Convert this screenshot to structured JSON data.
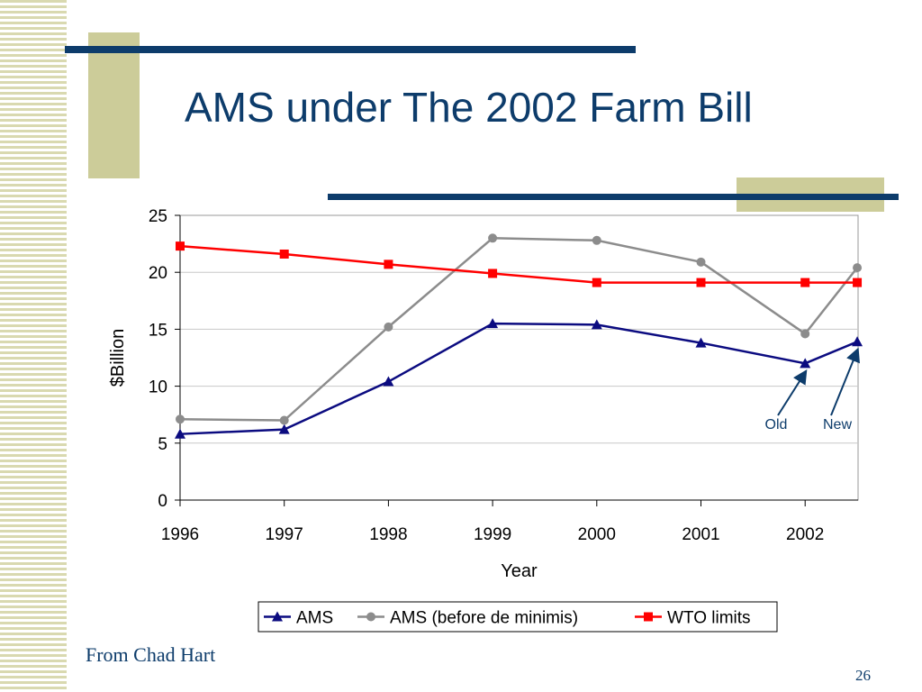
{
  "slide": {
    "title": "AMS under The 2002 Farm Bill",
    "credit": "From Chad Hart",
    "page_number": "26"
  },
  "colors": {
    "ams": "#0b0b80",
    "ams_before": "#8c8c8c",
    "wto": "#ff0000",
    "title": "#0d3c6b",
    "accent_bar": "#0d3c6b",
    "accent_block": "#cccc99"
  },
  "chart_data": {
    "type": "line",
    "title": "",
    "xlabel": "Year",
    "ylabel": "$Billion",
    "x_ticks": [
      "1996",
      "1997",
      "1998",
      "1999",
      "2000",
      "2001",
      "2002"
    ],
    "y_ticks": [
      "0",
      "5",
      "10",
      "15",
      "20",
      "25"
    ],
    "ylim": [
      0,
      25
    ],
    "grid": true,
    "legend_position": "bottom",
    "series": [
      {
        "name": "AMS",
        "marker": "triangle",
        "points": [
          [
            1996,
            5.8
          ],
          [
            1997,
            6.2
          ],
          [
            1998,
            10.4
          ],
          [
            1999,
            15.5
          ],
          [
            2000,
            15.4
          ],
          [
            2001,
            13.8
          ],
          [
            2002,
            12.0
          ],
          [
            2002.5,
            13.9
          ]
        ]
      },
      {
        "name": "AMS (before de minimis)",
        "marker": "circle",
        "points": [
          [
            1996,
            7.1
          ],
          [
            1997,
            7.0
          ],
          [
            1998,
            15.2
          ],
          [
            1999,
            23.0
          ],
          [
            2000,
            22.8
          ],
          [
            2001,
            20.9
          ],
          [
            2002,
            14.6
          ],
          [
            2002.5,
            20.4
          ]
        ]
      },
      {
        "name": "WTO limits",
        "marker": "square",
        "points": [
          [
            1996,
            22.3
          ],
          [
            1997,
            21.6
          ],
          [
            1998,
            20.7
          ],
          [
            1999,
            19.9
          ],
          [
            2000,
            19.1
          ],
          [
            2001,
            19.1
          ],
          [
            2002,
            19.1
          ],
          [
            2002.5,
            19.1
          ]
        ]
      }
    ],
    "annotations": [
      {
        "text": "Old",
        "points_to": [
          2002,
          12.0
        ]
      },
      {
        "text": "New",
        "points_to": [
          2002.5,
          13.9
        ]
      }
    ]
  }
}
